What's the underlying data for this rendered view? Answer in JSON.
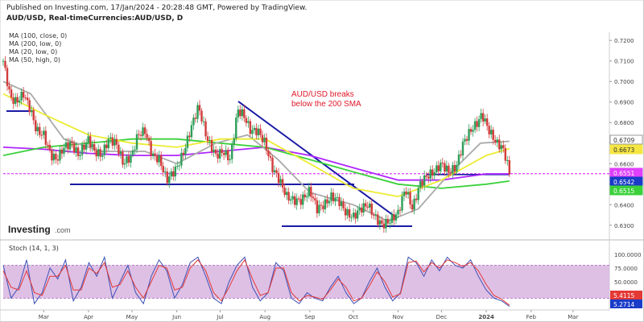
{
  "header": {
    "published": "Published on Investing.com, 17/Jan/2024 - 20:28:48 GMT, Powered by TradingView.",
    "symbol": "AUD/USD, Real-timeCurrencies:AUD/USD, D"
  },
  "legend": [
    "MA (100, close, 0)",
    "MA (200, low, 0)",
    "MA (20, low, 0)",
    "MA (50, high, 0)"
  ],
  "annotation": [
    "AUD/USD breaks",
    "below the 200 SMA"
  ],
  "logo": {
    "main": "Investing",
    "suffix": ".com"
  },
  "chart_data": [
    {
      "type": "line",
      "panel": "price",
      "title": "AUD/USD, Real-timeCurrencies:AUD/USD, D",
      "x_ticks": [
        "Mar",
        "Apr",
        "May",
        "Jun",
        "Jul",
        "Aug",
        "Sep",
        "Oct",
        "Nov",
        "Dec",
        "2024",
        "Feb",
        "Mar"
      ],
      "y_ticks": [
        "0.7200",
        "0.7100",
        "0.7000",
        "0.6900",
        "0.6800",
        "0.6700",
        "0.6600",
        "0.6500",
        "0.6400",
        "0.6300"
      ],
      "ylim": [
        0.626,
        0.724
      ],
      "grid": false,
      "price_labels": [
        {
          "value": "0.6709",
          "color": "#ffffff",
          "text_color": "#333333"
        },
        {
          "value": "0.6673",
          "color": "#f5e642",
          "text_color": "#333333"
        },
        {
          "value": "0.6551",
          "color": "#e040fb",
          "text_color": "#ffffff"
        },
        {
          "value": "0.6542",
          "color": "#1a3cc9",
          "text_color": "#ffffff"
        },
        {
          "value": "0.6515",
          "color": "#3bd13b",
          "text_color": "#ffffff"
        }
      ],
      "horizontal_lines": [
        {
          "y": 0.6551,
          "style": "dashed",
          "color": "#e040fb"
        },
        {
          "y": 0.6542,
          "color": "#1a1aa6"
        }
      ],
      "close_path": [
        [
          "2023-02-01",
          0.71
        ],
        [
          "2023-02-06",
          0.692
        ],
        [
          "2023-02-10",
          0.69
        ],
        [
          "2023-02-15",
          0.694
        ],
        [
          "2023-02-20",
          0.686
        ],
        [
          "2023-02-24",
          0.676
        ],
        [
          "2023-03-01",
          0.674
        ],
        [
          "2023-03-06",
          0.664
        ],
        [
          "2023-03-10",
          0.662
        ],
        [
          "2023-03-15",
          0.668
        ],
        [
          "2023-03-20",
          0.67
        ],
        [
          "2023-03-25",
          0.664
        ],
        [
          "2023-04-01",
          0.672
        ],
        [
          "2023-04-05",
          0.666
        ],
        [
          "2023-04-10",
          0.664
        ],
        [
          "2023-04-15",
          0.672
        ],
        [
          "2023-04-20",
          0.67
        ],
        [
          "2023-04-25",
          0.66
        ],
        [
          "2023-05-01",
          0.664
        ],
        [
          "2023-05-05",
          0.674
        ],
        [
          "2023-05-10",
          0.676
        ],
        [
          "2023-05-15",
          0.664
        ],
        [
          "2023-05-20",
          0.662
        ],
        [
          "2023-05-25",
          0.652
        ],
        [
          "2023-06-01",
          0.658
        ],
        [
          "2023-06-06",
          0.666
        ],
        [
          "2023-06-12",
          0.68
        ],
        [
          "2023-06-16",
          0.688
        ],
        [
          "2023-06-22",
          0.672
        ],
        [
          "2023-06-28",
          0.664
        ],
        [
          "2023-07-03",
          0.666
        ],
        [
          "2023-07-08",
          0.662
        ],
        [
          "2023-07-13",
          0.686
        ],
        [
          "2023-07-17",
          0.684
        ],
        [
          "2023-07-22",
          0.676
        ],
        [
          "2023-07-27",
          0.676
        ],
        [
          "2023-08-01",
          0.67
        ],
        [
          "2023-08-06",
          0.658
        ],
        [
          "2023-08-11",
          0.652
        ],
        [
          "2023-08-16",
          0.644
        ],
        [
          "2023-08-21",
          0.642
        ],
        [
          "2023-08-26",
          0.642
        ],
        [
          "2023-09-01",
          0.647
        ],
        [
          "2023-09-06",
          0.638
        ],
        [
          "2023-09-11",
          0.64
        ],
        [
          "2023-09-16",
          0.644
        ],
        [
          "2023-09-21",
          0.642
        ],
        [
          "2023-09-26",
          0.636
        ],
        [
          "2023-10-01",
          0.634
        ],
        [
          "2023-10-06",
          0.638
        ],
        [
          "2023-10-11",
          0.64
        ],
        [
          "2023-10-16",
          0.634
        ],
        [
          "2023-10-21",
          0.63
        ],
        [
          "2023-10-26",
          0.632
        ],
        [
          "2023-11-01",
          0.636
        ],
        [
          "2023-11-06",
          0.648
        ],
        [
          "2023-11-11",
          0.638
        ],
        [
          "2023-11-16",
          0.65
        ],
        [
          "2023-11-21",
          0.654
        ],
        [
          "2023-11-26",
          0.656
        ],
        [
          "2023-12-01",
          0.66
        ],
        [
          "2023-12-06",
          0.656
        ],
        [
          "2023-12-11",
          0.658
        ],
        [
          "2023-12-16",
          0.67
        ],
        [
          "2023-12-21",
          0.676
        ],
        [
          "2023-12-26",
          0.68
        ],
        [
          "2023-12-29",
          0.684
        ],
        [
          "2024-01-03",
          0.676
        ],
        [
          "2024-01-08",
          0.67
        ],
        [
          "2024-01-12",
          0.668
        ],
        [
          "2024-01-15",
          0.662
        ],
        [
          "2024-01-17",
          0.655
        ]
      ],
      "series": [
        {
          "name": "MA (100, close, 0)",
          "color": "#b026ff",
          "points": [
            [
              "2023-02-01",
              0.668
            ],
            [
              "2023-03-01",
              0.667
            ],
            [
              "2023-04-01",
              0.665
            ],
            [
              "2023-05-01",
              0.664
            ],
            [
              "2023-06-01",
              0.664
            ],
            [
              "2023-07-01",
              0.666
            ],
            [
              "2023-08-01",
              0.668
            ],
            [
              "2023-09-01",
              0.664
            ],
            [
              "2023-10-01",
              0.658
            ],
            [
              "2023-11-01",
              0.652
            ],
            [
              "2023-12-01",
              0.652
            ],
            [
              "2024-01-01",
              0.655
            ],
            [
              "2024-01-17",
              0.655
            ]
          ]
        },
        {
          "name": "MA (200, low, 0)",
          "color": "#3bd13b",
          "points": [
            [
              "2023-02-01",
              0.664
            ],
            [
              "2023-03-01",
              0.668
            ],
            [
              "2023-04-01",
              0.67
            ],
            [
              "2023-05-01",
              0.672
            ],
            [
              "2023-06-01",
              0.672
            ],
            [
              "2023-07-01",
              0.67
            ],
            [
              "2023-08-01",
              0.668
            ],
            [
              "2023-09-01",
              0.662
            ],
            [
              "2023-10-01",
              0.656
            ],
            [
              "2023-11-01",
              0.65
            ],
            [
              "2023-12-01",
              0.648
            ],
            [
              "2024-01-01",
              0.65
            ],
            [
              "2024-01-17",
              0.6515
            ]
          ]
        },
        {
          "name": "MA (20, low, 0)",
          "color": "#aaaaaa",
          "points": [
            [
              "2023-02-01",
              0.7
            ],
            [
              "2023-02-20",
              0.694
            ],
            [
              "2023-03-15",
              0.672
            ],
            [
              "2023-04-10",
              0.666
            ],
            [
              "2023-05-10",
              0.666
            ],
            [
              "2023-06-01",
              0.66
            ],
            [
              "2023-06-28",
              0.67
            ],
            [
              "2023-07-20",
              0.674
            ],
            [
              "2023-08-10",
              0.662
            ],
            [
              "2023-09-01",
              0.646
            ],
            [
              "2023-10-01",
              0.64
            ],
            [
              "2023-10-25",
              0.632
            ],
            [
              "2023-11-15",
              0.638
            ],
            [
              "2023-12-05",
              0.654
            ],
            [
              "2023-12-28",
              0.67
            ],
            [
              "2024-01-17",
              0.6709
            ]
          ]
        },
        {
          "name": "MA (50, high, 0)",
          "color": "#ecec33",
          "points": [
            [
              "2023-02-01",
              0.694
            ],
            [
              "2023-03-01",
              0.684
            ],
            [
              "2023-04-01",
              0.674
            ],
            [
              "2023-05-01",
              0.67
            ],
            [
              "2023-06-01",
              0.668
            ],
            [
              "2023-07-01",
              0.672
            ],
            [
              "2023-08-01",
              0.672
            ],
            [
              "2023-09-01",
              0.66
            ],
            [
              "2023-10-01",
              0.648
            ],
            [
              "2023-11-01",
              0.644
            ],
            [
              "2023-12-01",
              0.652
            ],
            [
              "2024-01-01",
              0.664
            ],
            [
              "2024-01-17",
              0.6673
            ]
          ]
        }
      ]
    },
    {
      "type": "line",
      "panel": "stochastic",
      "title": "Stoch (14, 1, 3)",
      "y_ticks": [
        "100.0000",
        "75.0000",
        "50.0000",
        "25.0000"
      ],
      "ylim": [
        0,
        100
      ],
      "band": [
        20,
        80
      ],
      "band_color": "#d8b5e0",
      "price_labels": [
        {
          "value": "5.4115",
          "color": "#e53935",
          "text_color": "#ffffff"
        },
        {
          "value": "5.2714",
          "color": "#1a3cc9",
          "text_color": "#ffffff"
        }
      ],
      "series": [
        {
          "name": "%K",
          "color": "#3f51b5",
          "values": [
            80,
            20,
            40,
            90,
            10,
            30,
            75,
            55,
            90,
            15,
            40,
            85,
            60,
            95,
            20,
            50,
            80,
            30,
            10,
            60,
            90,
            70,
            20,
            45,
            85,
            95,
            60,
            20,
            10,
            50,
            80,
            95,
            40,
            15,
            30,
            85,
            70,
            20,
            10,
            30,
            20,
            15,
            40,
            60,
            30,
            10,
            20,
            50,
            75,
            40,
            15,
            30,
            95,
            85,
            60,
            90,
            70,
            95,
            80,
            75,
            90,
            60,
            35,
            20,
            15,
            5
          ]
        },
        {
          "name": "%D",
          "color": "#e53935",
          "values": [
            70,
            40,
            35,
            70,
            30,
            25,
            60,
            60,
            80,
            35,
            35,
            75,
            65,
            85,
            40,
            45,
            70,
            40,
            20,
            50,
            80,
            75,
            35,
            40,
            75,
            90,
            70,
            30,
            15,
            40,
            70,
            90,
            55,
            25,
            30,
            75,
            75,
            30,
            15,
            25,
            22,
            18,
            35,
            55,
            40,
            15,
            20,
            42,
            68,
            50,
            22,
            28,
            85,
            88,
            68,
            85,
            75,
            90,
            85,
            78,
            85,
            70,
            45,
            25,
            18,
            7
          ]
        }
      ]
    }
  ]
}
